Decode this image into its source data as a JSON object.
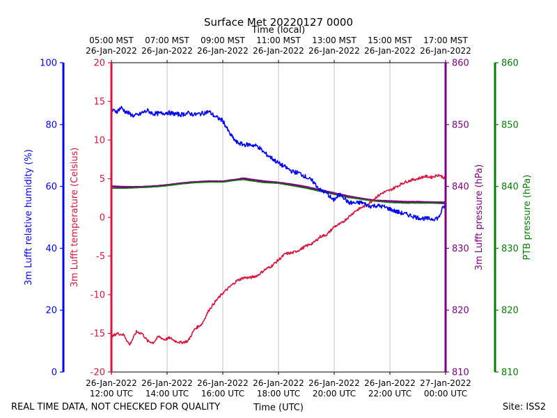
{
  "chart_data": {
    "type": "line",
    "title": "Surface Met 20220127 0000",
    "top_axis_label": "Time (local)",
    "xlabel": "Time (UTC)",
    "footer_left": "REAL TIME DATA, NOT CHECKED FOR QUALITY",
    "footer_right": "Site: ISS2",
    "x_range_hours": [
      12,
      24
    ],
    "x_ticks_utc": [
      {
        "hour": 12,
        "line1": "26-Jan-2022",
        "line2": "12:00 UTC"
      },
      {
        "hour": 14,
        "line1": "26-Jan-2022",
        "line2": "14:00 UTC"
      },
      {
        "hour": 16,
        "line1": "26-Jan-2022",
        "line2": "16:00 UTC"
      },
      {
        "hour": 18,
        "line1": "26-Jan-2022",
        "line2": "18:00 UTC"
      },
      {
        "hour": 20,
        "line1": "26-Jan-2022",
        "line2": "20:00 UTC"
      },
      {
        "hour": 22,
        "line1": "26-Jan-2022",
        "line2": "22:00 UTC"
      },
      {
        "hour": 24,
        "line1": "27-Jan-2022",
        "line2": "00:00 UTC"
      }
    ],
    "x_ticks_local": [
      {
        "hour": 12,
        "line1": "05:00 MST",
        "line2": "26-Jan-2022"
      },
      {
        "hour": 14,
        "line1": "07:00 MST",
        "line2": "26-Jan-2022"
      },
      {
        "hour": 16,
        "line1": "09:00 MST",
        "line2": "26-Jan-2022"
      },
      {
        "hour": 18,
        "line1": "11:00 MST",
        "line2": "26-Jan-2022"
      },
      {
        "hour": 20,
        "line1": "13:00 MST",
        "line2": "26-Jan-2022"
      },
      {
        "hour": 22,
        "line1": "15:00 MST",
        "line2": "26-Jan-2022"
      },
      {
        "hour": 24,
        "line1": "17:00 MST",
        "line2": "26-Jan-2022"
      }
    ],
    "axes": {
      "rh": {
        "label": "3m Lufft relative humidity (%)",
        "range": [
          0,
          100
        ],
        "ticks": [
          0,
          20,
          40,
          60,
          80,
          100
        ],
        "color": "#0000ff"
      },
      "temp": {
        "label": "3m Lufft temperature (Celsius)",
        "range": [
          -20,
          20
        ],
        "ticks": [
          -20,
          -15,
          -10,
          -5,
          0,
          5,
          10,
          15,
          20
        ],
        "color": "#dc143c"
      },
      "lufft_p": {
        "label": "3m Lufft pressure (hPa)",
        "range": [
          810,
          860
        ],
        "ticks": [
          810,
          820,
          830,
          840,
          850,
          860
        ],
        "color": "#800080"
      },
      "ptb_p": {
        "label": "PTB pressure (hPa)",
        "range": [
          810,
          860
        ],
        "ticks": [
          810,
          820,
          830,
          840,
          850,
          860
        ],
        "color": "#008000"
      }
    },
    "series": [
      {
        "name": "3m Lufft relative humidity",
        "axis": "rh",
        "x": [
          12.0,
          12.2,
          12.35,
          12.5,
          12.8,
          13.0,
          13.1,
          13.3,
          13.5,
          13.8,
          14.0,
          14.25,
          14.5,
          14.75,
          15.0,
          15.25,
          15.5,
          15.75,
          16.0,
          16.25,
          16.5,
          16.75,
          17.0,
          17.25,
          17.5,
          17.75,
          18.0,
          18.25,
          18.5,
          18.75,
          19.0,
          19.25,
          19.5,
          19.75,
          19.95,
          20.25,
          20.5,
          20.75,
          21.0,
          21.25,
          21.5,
          21.75,
          22.0,
          22.25,
          22.5,
          22.75,
          23.0,
          23.25,
          23.5,
          23.75,
          23.9,
          24.0
        ],
        "values": [
          84.5,
          84.3,
          85.5,
          84.2,
          82.8,
          83.2,
          83.8,
          84.5,
          83.5,
          83.6,
          83.9,
          83.5,
          83.2,
          83.7,
          83.2,
          83.6,
          84.2,
          82.4,
          81.3,
          77.0,
          74.2,
          73.5,
          73.5,
          73.0,
          70.8,
          69.2,
          67.5,
          66.2,
          64.8,
          64.3,
          63.0,
          61.5,
          58.8,
          57.8,
          55.5,
          57.5,
          54.8,
          54.6,
          54.8,
          53.6,
          53.8,
          53.5,
          52.7,
          51.8,
          51.2,
          50.6,
          49.9,
          49.6,
          49.5,
          49.8,
          53.0,
          54.1
        ]
      },
      {
        "name": "3m Lufft temperature",
        "axis": "temp",
        "x": [
          12.0,
          12.2,
          12.45,
          12.65,
          12.9,
          13.1,
          13.3,
          13.5,
          13.7,
          13.9,
          14.1,
          14.3,
          14.5,
          14.75,
          15.0,
          15.25,
          15.5,
          15.75,
          16.0,
          16.25,
          16.5,
          16.75,
          17.0,
          17.25,
          17.5,
          17.75,
          18.0,
          18.25,
          18.5,
          18.75,
          19.0,
          19.25,
          19.5,
          19.75,
          20.0,
          20.25,
          20.5,
          20.75,
          21.0,
          21.25,
          21.5,
          21.75,
          22.0,
          22.25,
          22.5,
          22.75,
          23.0,
          23.25,
          23.5,
          23.75,
          24.0
        ],
        "values": [
          -15.5,
          -15.0,
          -15.2,
          -16.5,
          -14.8,
          -15.0,
          -16.0,
          -16.2,
          -15.4,
          -15.8,
          -15.6,
          -16.0,
          -16.2,
          -16.0,
          -14.4,
          -13.8,
          -12.0,
          -10.8,
          -9.8,
          -9.0,
          -8.2,
          -7.8,
          -7.8,
          -7.5,
          -6.8,
          -6.3,
          -5.5,
          -4.7,
          -4.6,
          -4.2,
          -3.7,
          -3.3,
          -2.5,
          -2.2,
          -1.2,
          -0.8,
          0.0,
          0.8,
          1.3,
          1.8,
          2.6,
          3.2,
          3.5,
          4.0,
          4.5,
          4.8,
          5.0,
          5.3,
          5.2,
          5.5,
          5.0
        ]
      },
      {
        "name": "3m Lufft pressure",
        "axis": "lufft_p",
        "x": [
          12.0,
          12.5,
          13.0,
          13.5,
          14.0,
          14.5,
          15.0,
          15.5,
          16.0,
          16.5,
          16.75,
          17.0,
          17.5,
          18.0,
          18.5,
          19.0,
          19.5,
          20.0,
          20.5,
          21.0,
          21.5,
          22.0,
          22.5,
          23.0,
          23.5,
          24.0
        ],
        "values": [
          840.0,
          839.9,
          839.9,
          840.0,
          840.2,
          840.5,
          840.7,
          840.8,
          840.8,
          841.1,
          841.3,
          841.1,
          840.8,
          840.6,
          840.3,
          839.9,
          839.4,
          838.9,
          838.4,
          838.0,
          837.7,
          837.6,
          837.5,
          837.5,
          837.4,
          837.4
        ]
      },
      {
        "name": "PTB pressure",
        "axis": "ptb_p",
        "x": [
          12.0,
          12.5,
          13.0,
          13.5,
          14.0,
          14.5,
          15.0,
          15.5,
          16.0,
          16.5,
          16.75,
          17.0,
          17.5,
          18.0,
          18.5,
          19.0,
          19.5,
          20.0,
          20.5,
          21.0,
          21.5,
          22.0,
          22.5,
          23.0,
          23.5,
          24.0
        ],
        "values": [
          839.7,
          839.7,
          839.8,
          839.9,
          840.1,
          840.4,
          840.6,
          840.7,
          840.7,
          841.0,
          841.1,
          840.9,
          840.6,
          840.5,
          840.1,
          839.7,
          839.2,
          838.7,
          838.2,
          837.9,
          837.6,
          837.4,
          837.3,
          837.3,
          837.3,
          837.2
        ]
      }
    ]
  }
}
